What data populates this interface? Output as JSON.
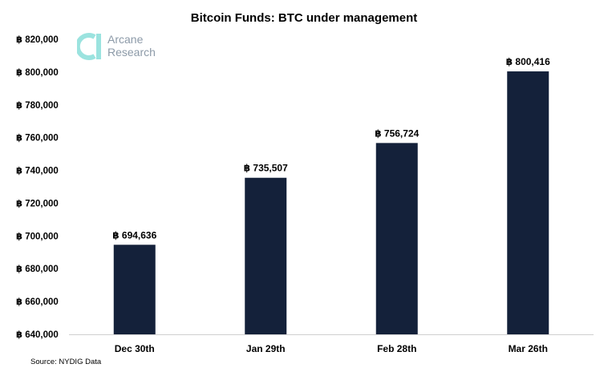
{
  "chart_data": {
    "type": "bar",
    "title": "Bitcoin Funds: BTC under management",
    "categories": [
      "Dec 30th",
      "Jan 29th",
      "Feb 28th",
      "Mar 26th"
    ],
    "values": [
      694636,
      735507,
      756724,
      800416
    ],
    "value_labels": [
      "฿ 694,636",
      "฿ 735,507",
      "฿ 756,724",
      "฿ 800,416"
    ],
    "y_ticks": [
      640000,
      660000,
      680000,
      700000,
      720000,
      740000,
      760000,
      780000,
      800000,
      820000
    ],
    "y_tick_labels": [
      "฿ 640,000",
      "฿ 660,000",
      "฿ 680,000",
      "฿ 700,000",
      "฿ 720,000",
      "฿ 740,000",
      "฿ 760,000",
      "฿ 780,000",
      "฿ 800,000",
      "฿ 820,000"
    ],
    "ylim": [
      640000,
      820000
    ],
    "xlabel": "",
    "ylabel": "",
    "grid": false,
    "legend": "none",
    "bar_color": "#14213a"
  },
  "logo": {
    "line1": "Arcane",
    "line2": "Research",
    "accent": "#9be3df"
  },
  "source": "Source: NYDIG Data"
}
